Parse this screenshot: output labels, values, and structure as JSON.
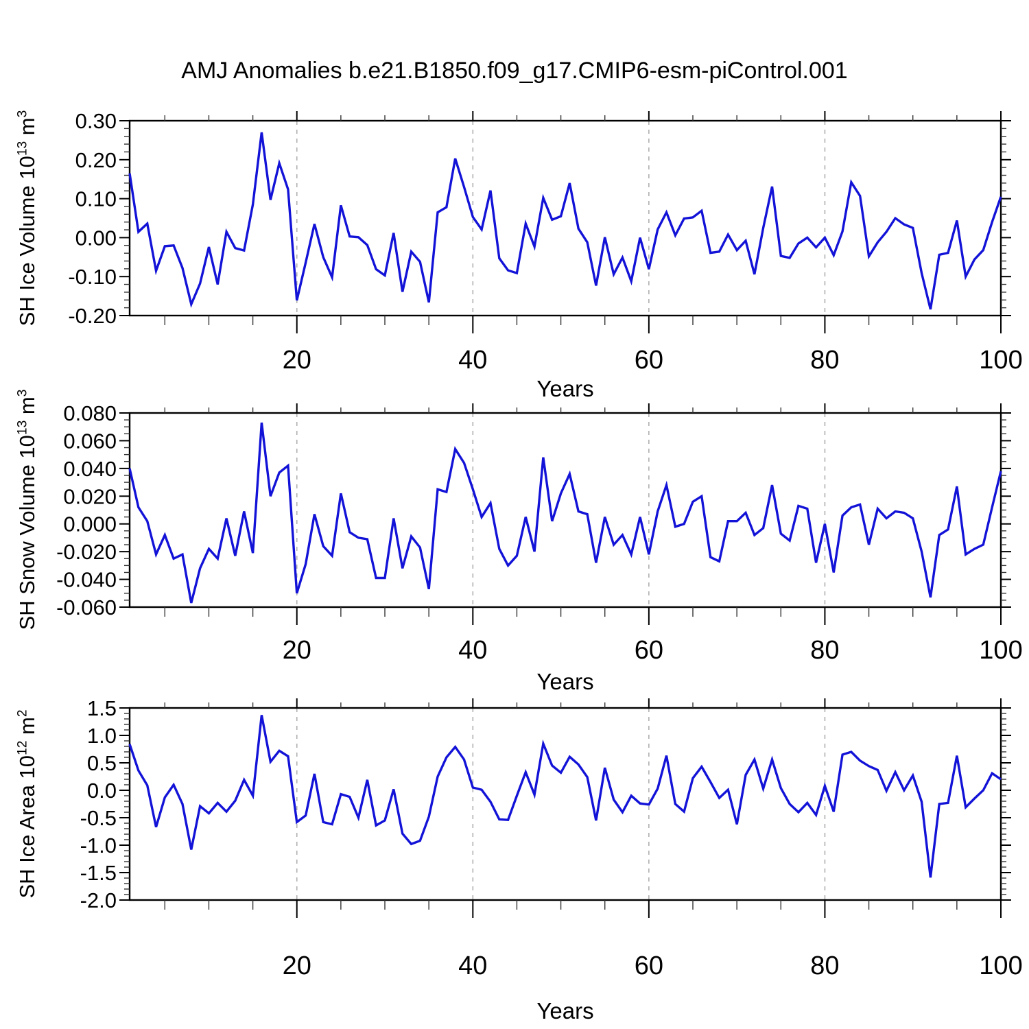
{
  "title": "AMJ Anomalies b.e21.B1850.f09_g17.CMIP6-esm-piControl.001",
  "style": {
    "line_color": "#1313d8",
    "grid_color": "#b0b0b0",
    "frame_color": "#000000",
    "background": "#ffffff"
  },
  "chart_data": [
    {
      "type": "line",
      "name": "sh-ice-volume-anomaly",
      "ylabel_parts": [
        "SH Ice Volume 10",
        "13",
        " m",
        "3"
      ],
      "xlabel": "Years",
      "x_start": 1,
      "x_end": 100,
      "ylim": [
        -0.2,
        0.3
      ],
      "yticks": [
        0.3,
        0.2,
        0.1,
        0.0,
        -0.1,
        -0.2
      ],
      "ytick_labels": [
        "0.30",
        "0.20",
        "0.10",
        "0.00",
        "-0.10",
        "-0.20"
      ],
      "ytick_minor": 0.02,
      "xticks": [
        20,
        40,
        60,
        80,
        100
      ],
      "xtick_labels": [
        "20",
        "40",
        "60",
        "80",
        "100"
      ],
      "xtick_minor": 5,
      "grid_x": [
        20,
        40,
        60,
        80
      ],
      "values": [
        0.165,
        0.015,
        0.036,
        -0.085,
        -0.022,
        -0.02,
        -0.078,
        -0.171,
        -0.118,
        -0.024,
        -0.12,
        0.015,
        -0.027,
        -0.033,
        0.085,
        0.27,
        0.097,
        0.191,
        0.124,
        -0.161,
        -0.064,
        0.035,
        -0.05,
        -0.102,
        0.083,
        0.003,
        0.001,
        -0.019,
        -0.081,
        -0.097,
        0.012,
        -0.139,
        -0.036,
        -0.062,
        -0.166,
        0.065,
        0.078,
        0.203,
        0.13,
        0.053,
        0.021,
        0.121,
        -0.053,
        -0.084,
        -0.091,
        0.036,
        -0.023,
        0.102,
        0.046,
        0.055,
        0.14,
        0.023,
        -0.012,
        -0.123,
        0.001,
        -0.094,
        -0.051,
        -0.112,
        0.0,
        -0.081,
        0.021,
        0.065,
        0.006,
        0.049,
        0.052,
        0.069,
        -0.039,
        -0.036,
        0.008,
        -0.032,
        -0.008,
        -0.094,
        0.025,
        0.131,
        -0.047,
        -0.052,
        -0.015,
        0.0,
        -0.025,
        0.0,
        -0.045,
        0.016,
        0.142,
        0.107,
        -0.048,
        -0.012,
        0.015,
        0.05,
        0.034,
        0.025,
        -0.091,
        -0.184,
        -0.044,
        -0.039,
        0.044,
        -0.1,
        -0.056,
        -0.032,
        0.04,
        0.105
      ]
    },
    {
      "type": "line",
      "name": "sh-snow-volume-anomaly",
      "ylabel_parts": [
        "SH Snow Volume 10",
        "13",
        " m",
        "3"
      ],
      "xlabel": "Years",
      "x_start": 1,
      "x_end": 100,
      "ylim": [
        -0.06,
        0.08
      ],
      "yticks": [
        0.08,
        0.06,
        0.04,
        0.02,
        0.0,
        -0.02,
        -0.04,
        -0.06
      ],
      "ytick_labels": [
        "0.080",
        "0.060",
        "0.040",
        "0.020",
        "0.000",
        "-0.020",
        "-0.040",
        "-0.060"
      ],
      "ytick_minor": 0.005,
      "xticks": [
        20,
        40,
        60,
        80,
        100
      ],
      "xtick_labels": [
        "20",
        "40",
        "60",
        "80",
        "100"
      ],
      "xtick_minor": 5,
      "grid_x": [
        20,
        40,
        60,
        80
      ],
      "values": [
        0.04,
        0.012,
        0.002,
        -0.022,
        -0.008,
        -0.025,
        -0.022,
        -0.057,
        -0.032,
        -0.018,
        -0.025,
        0.004,
        -0.023,
        0.009,
        -0.021,
        0.073,
        0.02,
        0.037,
        0.042,
        -0.05,
        -0.029,
        0.007,
        -0.016,
        -0.023,
        0.022,
        -0.006,
        -0.01,
        -0.011,
        -0.039,
        -0.039,
        0.004,
        -0.032,
        -0.009,
        -0.017,
        -0.047,
        0.025,
        0.023,
        0.054,
        0.044,
        0.025,
        0.005,
        0.015,
        -0.018,
        -0.03,
        -0.023,
        0.005,
        -0.02,
        0.048,
        0.002,
        0.022,
        0.036,
        0.009,
        0.007,
        -0.028,
        0.005,
        -0.015,
        -0.008,
        -0.022,
        0.005,
        -0.022,
        0.009,
        0.028,
        -0.002,
        0.0,
        0.016,
        0.02,
        -0.024,
        -0.027,
        0.002,
        0.002,
        0.008,
        -0.008,
        -0.003,
        0.028,
        -0.007,
        -0.012,
        0.013,
        0.011,
        -0.028,
        0.0,
        -0.035,
        0.006,
        0.012,
        0.014,
        -0.015,
        0.011,
        0.004,
        0.009,
        0.008,
        0.004,
        -0.02,
        -0.053,
        -0.008,
        -0.004,
        0.027,
        -0.022,
        -0.018,
        -0.015,
        0.012,
        0.038
      ]
    },
    {
      "type": "line",
      "name": "sh-ice-area-anomaly",
      "ylabel_parts": [
        "SH Ice Area 10",
        "12",
        " m",
        "2"
      ],
      "xlabel": "Years",
      "x_start": 1,
      "x_end": 100,
      "ylim": [
        -2.0,
        1.5
      ],
      "yticks": [
        1.5,
        1.0,
        0.5,
        0.0,
        -0.5,
        -1.0,
        -1.5,
        -2.0
      ],
      "ytick_labels": [
        "1.5",
        "1.0",
        "0.5",
        "0.0",
        "-0.5",
        "-1.0",
        "-1.5",
        "-2.0"
      ],
      "ytick_minor": 0.1,
      "xticks": [
        20,
        40,
        60,
        80,
        100
      ],
      "xtick_labels": [
        "20",
        "40",
        "60",
        "80",
        "100"
      ],
      "xtick_minor": 5,
      "grid_x": [
        20,
        40,
        60,
        80
      ],
      "values": [
        0.84,
        0.36,
        0.09,
        -0.67,
        -0.13,
        0.1,
        -0.25,
        -1.08,
        -0.29,
        -0.42,
        -0.23,
        -0.39,
        -0.19,
        0.19,
        -0.1,
        1.37,
        0.52,
        0.72,
        0.62,
        -0.58,
        -0.46,
        0.3,
        -0.58,
        -0.62,
        -0.07,
        -0.12,
        -0.5,
        0.19,
        -0.64,
        -0.55,
        0.02,
        -0.79,
        -0.98,
        -0.92,
        -0.48,
        0.25,
        0.6,
        0.79,
        0.56,
        0.05,
        0.01,
        -0.21,
        -0.53,
        -0.54,
        -0.1,
        0.33,
        -0.08,
        0.85,
        0.45,
        0.32,
        0.61,
        0.47,
        0.24,
        -0.55,
        0.41,
        -0.17,
        -0.4,
        -0.1,
        -0.24,
        -0.26,
        0.03,
        0.63,
        -0.25,
        -0.39,
        0.22,
        0.43,
        0.15,
        -0.14,
        0.01,
        -0.62,
        0.28,
        0.56,
        0.03,
        0.56,
        0.04,
        -0.25,
        -0.4,
        -0.23,
        -0.45,
        0.08,
        -0.39,
        0.65,
        0.7,
        0.54,
        0.44,
        0.37,
        -0.01,
        0.33,
        0.0,
        0.27,
        -0.21,
        -1.59,
        -0.25,
        -0.23,
        0.63,
        -0.31,
        -0.15,
        0.0,
        0.31,
        0.2
      ]
    }
  ]
}
